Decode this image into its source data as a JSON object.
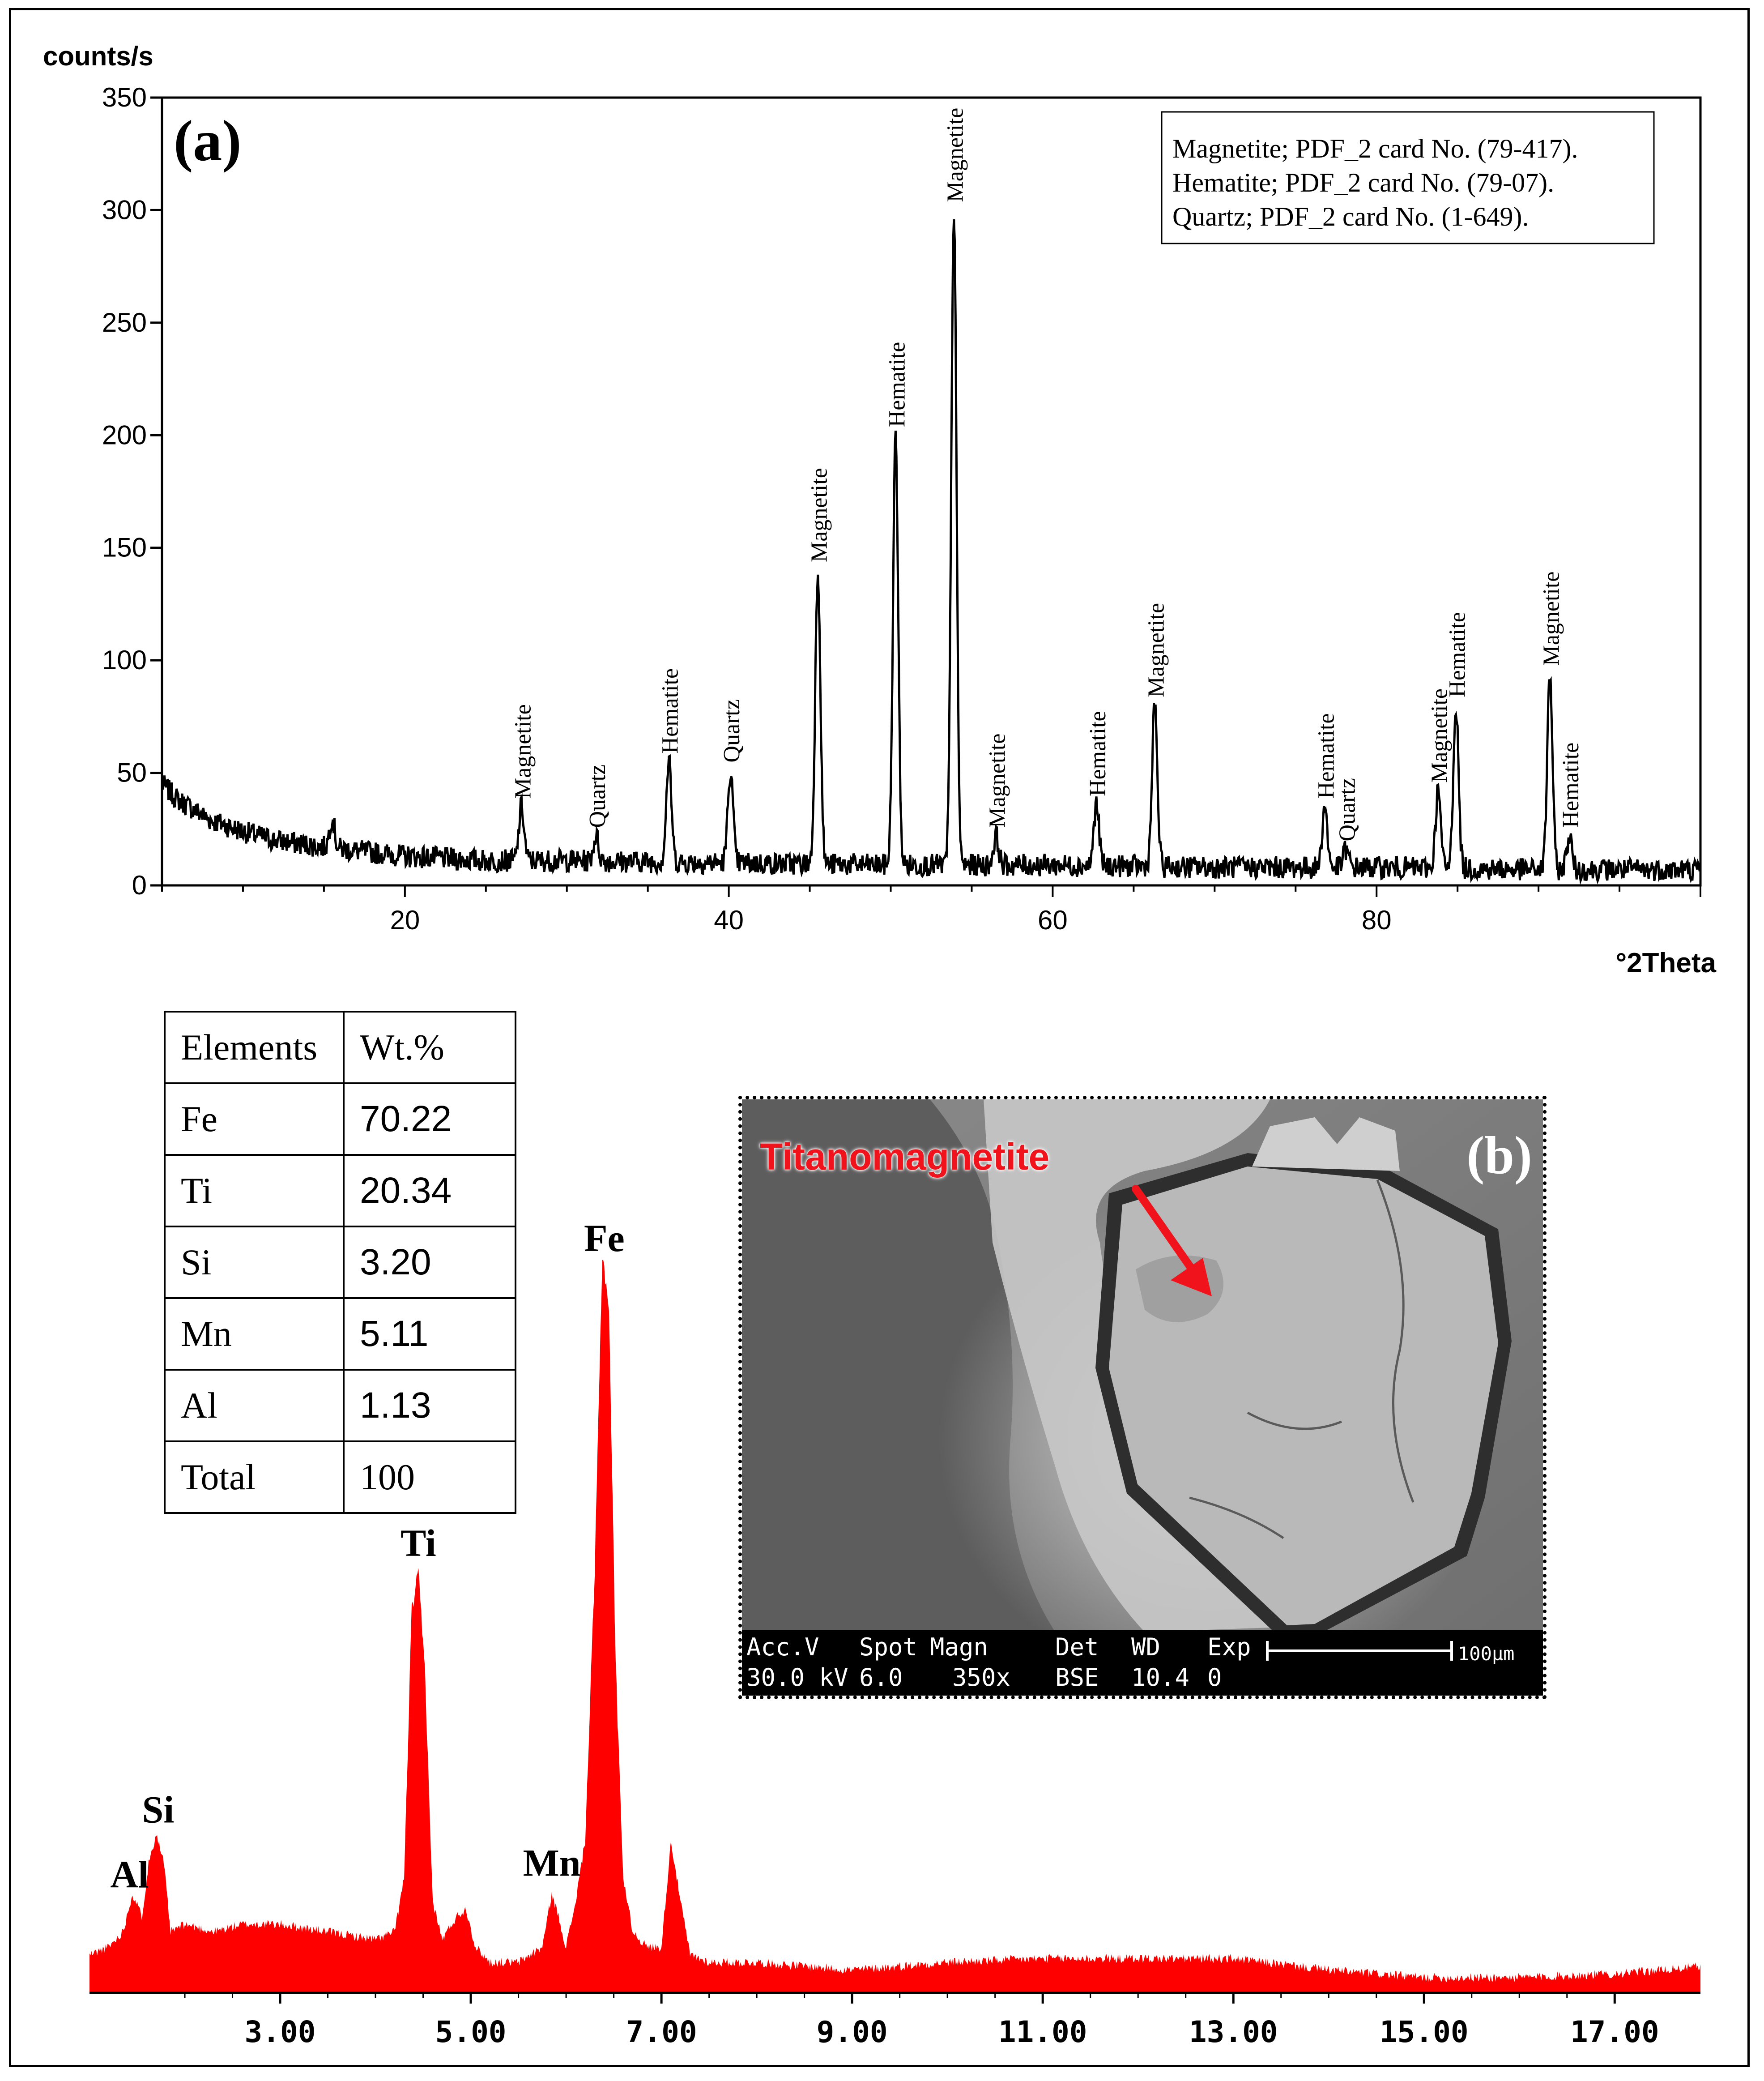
{
  "chart_data": [
    {
      "type": "line",
      "panel_label": "(a)",
      "ylabel": "counts/s",
      "xlabel": "°2Theta",
      "xlim": [
        5,
        100
      ],
      "ylim": [
        0,
        350
      ],
      "xticks": [
        "20",
        "40",
        "60",
        "80"
      ],
      "xtick_values": [
        20,
        40,
        60,
        80
      ],
      "yticks": [
        "0",
        "50",
        "100",
        "150",
        "200",
        "250",
        "300",
        "350"
      ],
      "ytick_values": [
        0,
        50,
        100,
        150,
        200,
        250,
        300,
        350
      ],
      "grid": false,
      "legend": [
        "Magnetite; PDF_2 card No. (79-417).",
        "Hematite; PDF_2 card No. (79-07).",
        "Quartz; PDF_2 card No. (1-649)."
      ],
      "legend_position": "top-right",
      "background": {
        "x": [
          5,
          6,
          8,
          10,
          12,
          15,
          20,
          25,
          30,
          40,
          50,
          60,
          70,
          80,
          90,
          100
        ],
        "y": [
          45,
          38,
          29,
          24,
          20,
          17,
          13,
          11,
          11,
          10,
          9,
          9,
          8,
          8,
          7,
          7
        ]
      },
      "peaks": [
        {
          "x": 15.5,
          "y": 30,
          "label": ""
        },
        {
          "x": 27.2,
          "y": 35,
          "label": "Magnetite"
        },
        {
          "x": 31.8,
          "y": 22,
          "label": "Quartz"
        },
        {
          "x": 36.3,
          "y": 55,
          "label": "Hematite"
        },
        {
          "x": 40.1,
          "y": 51,
          "label": "Quartz"
        },
        {
          "x": 45.5,
          "y": 140,
          "label": "Magnetite"
        },
        {
          "x": 50.3,
          "y": 200,
          "label": "Hematite"
        },
        {
          "x": 53.9,
          "y": 300,
          "label": "Magnetite"
        },
        {
          "x": 56.5,
          "y": 22,
          "label": "Magnetite"
        },
        {
          "x": 62.7,
          "y": 36,
          "label": "Hematite"
        },
        {
          "x": 66.3,
          "y": 80,
          "label": "Magnetite"
        },
        {
          "x": 76.8,
          "y": 35,
          "label": "Hematite"
        },
        {
          "x": 78.1,
          "y": 16,
          "label": "Quartz"
        },
        {
          "x": 83.8,
          "y": 42,
          "label": "Magnetite"
        },
        {
          "x": 84.9,
          "y": 80,
          "label": "Hematite"
        },
        {
          "x": 90.7,
          "y": 94,
          "label": "Magnetite"
        },
        {
          "x": 91.9,
          "y": 22,
          "label": "Hematite"
        }
      ]
    },
    {
      "type": "area",
      "xlim": [
        1.0,
        17.9
      ],
      "ylim": [
        0,
        1.0
      ],
      "xticks": [
        "3.00",
        "5.00",
        "7.00",
        "9.00",
        "11.00",
        "13.00",
        "15.00",
        "17.00"
      ],
      "xtick_values": [
        3,
        5,
        7,
        9,
        11,
        13,
        15,
        17
      ],
      "color": "#ff0000",
      "x": [
        1.0,
        1.2,
        1.35,
        1.45,
        1.55,
        1.62,
        1.7,
        1.78,
        1.85,
        2.0,
        2.3,
        2.6,
        3.0,
        3.5,
        4.0,
        4.2,
        4.3,
        4.38,
        4.45,
        4.52,
        4.6,
        4.7,
        4.85,
        4.95,
        5.05,
        5.2,
        5.5,
        5.75,
        5.85,
        5.92,
        6.0,
        6.1,
        6.2,
        6.3,
        6.38,
        6.45,
        6.52,
        6.6,
        6.7,
        6.85,
        7.0,
        7.1,
        7.2,
        7.3,
        7.5,
        8.0,
        9.0,
        10.0,
        11.0,
        12.0,
        13.0,
        14.0,
        15.0,
        16.0,
        17.0,
        17.5,
        17.9
      ],
      "y": [
        0.05,
        0.06,
        0.08,
        0.13,
        0.1,
        0.17,
        0.21,
        0.17,
        0.08,
        0.09,
        0.08,
        0.09,
        0.09,
        0.08,
        0.07,
        0.08,
        0.15,
        0.5,
        0.55,
        0.42,
        0.12,
        0.07,
        0.1,
        0.11,
        0.06,
        0.04,
        0.04,
        0.06,
        0.13,
        0.1,
        0.06,
        0.12,
        0.2,
        0.55,
        0.97,
        0.9,
        0.43,
        0.15,
        0.08,
        0.06,
        0.06,
        0.2,
        0.12,
        0.05,
        0.04,
        0.04,
        0.03,
        0.04,
        0.045,
        0.045,
        0.045,
        0.03,
        0.02,
        0.02,
        0.025,
        0.03,
        0.035
      ],
      "peak_labels": [
        {
          "text": "Al",
          "x": 1.42
        },
        {
          "text": "Si",
          "x": 1.72
        },
        {
          "text": "Ti",
          "x": 4.45
        },
        {
          "text": "Mn",
          "x": 5.85
        },
        {
          "text": "Fe",
          "x": 6.4
        }
      ]
    }
  ],
  "table": {
    "headers": [
      "Elements",
      "Wt.%"
    ],
    "rows": [
      [
        "Fe",
        "70.22"
      ],
      [
        "Ti",
        "20.34"
      ],
      [
        "Si",
        "3.20"
      ],
      [
        "Mn",
        "5.11"
      ],
      [
        "Al",
        "1.13"
      ],
      [
        "Total",
        "100"
      ]
    ]
  },
  "sem_image": {
    "panel_label": "(b)",
    "annotation": "Titanomagnetite",
    "annotation_color": "#f0131b",
    "info_row1": [
      "Acc.V",
      "Spot",
      "Magn",
      "Det",
      "WD",
      "Exp"
    ],
    "info_row2": [
      "30.0 kV",
      "6.0",
      "350x",
      "BSE",
      "10.4",
      "0"
    ],
    "scale_bar": "100µm"
  }
}
